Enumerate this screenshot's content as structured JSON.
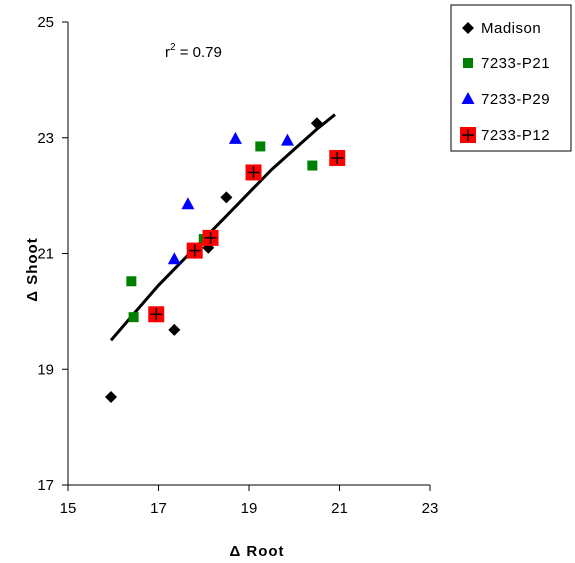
{
  "chart_data": {
    "type": "scatter",
    "title": "",
    "xlabel": "Δ Root",
    "ylabel": "Δ Shoot",
    "xlim": [
      15,
      23
    ],
    "ylim": [
      17,
      25
    ],
    "xticks": [
      15,
      17,
      19,
      21,
      23
    ],
    "yticks": [
      17,
      19,
      21,
      23,
      25
    ],
    "xtick_labels": [
      "15",
      "17",
      "19",
      "21",
      "23"
    ],
    "ytick_labels": [
      "17",
      "19",
      "21",
      "23",
      "25"
    ],
    "grid": false,
    "legend_position": "top-right",
    "annotation": {
      "prefix": "r",
      "superscript": "2",
      "suffix": " = 0.79"
    },
    "series": [
      {
        "name": "Madison",
        "marker": "diamond",
        "color": "#000000",
        "points": [
          [
            15.95,
            18.52
          ],
          [
            17.35,
            19.68
          ],
          [
            18.1,
            21.1
          ],
          [
            18.5,
            21.97
          ],
          [
            20.5,
            23.25
          ]
        ]
      },
      {
        "name": "7233-P21",
        "marker": "square",
        "color": "#008000",
        "points": [
          [
            16.4,
            20.52
          ],
          [
            16.45,
            19.9
          ],
          [
            18.0,
            21.25
          ],
          [
            19.25,
            22.85
          ],
          [
            20.4,
            22.52
          ]
        ]
      },
      {
        "name": "7233-P29",
        "marker": "triangle",
        "color": "#0000ff",
        "points": [
          [
            17.35,
            20.9
          ],
          [
            17.65,
            21.85
          ],
          [
            18.7,
            22.98
          ],
          [
            19.85,
            22.95
          ]
        ]
      },
      {
        "name": "7233-P12",
        "marker": "square-plus",
        "color": "#ff0000",
        "points": [
          [
            16.95,
            19.95
          ],
          [
            17.8,
            21.05
          ],
          [
            18.15,
            21.27
          ],
          [
            19.1,
            22.4
          ],
          [
            20.95,
            22.65
          ]
        ]
      }
    ],
    "trendline": {
      "color": "#000000",
      "points": [
        [
          15.95,
          19.5
        ],
        [
          16.5,
          20.0
        ],
        [
          17.0,
          20.45
        ],
        [
          17.5,
          20.85
        ],
        [
          18.0,
          21.25
        ],
        [
          18.5,
          21.65
        ],
        [
          19.0,
          22.05
        ],
        [
          19.5,
          22.45
        ],
        [
          20.0,
          22.8
        ],
        [
          20.5,
          23.15
        ],
        [
          20.9,
          23.4
        ]
      ]
    }
  }
}
